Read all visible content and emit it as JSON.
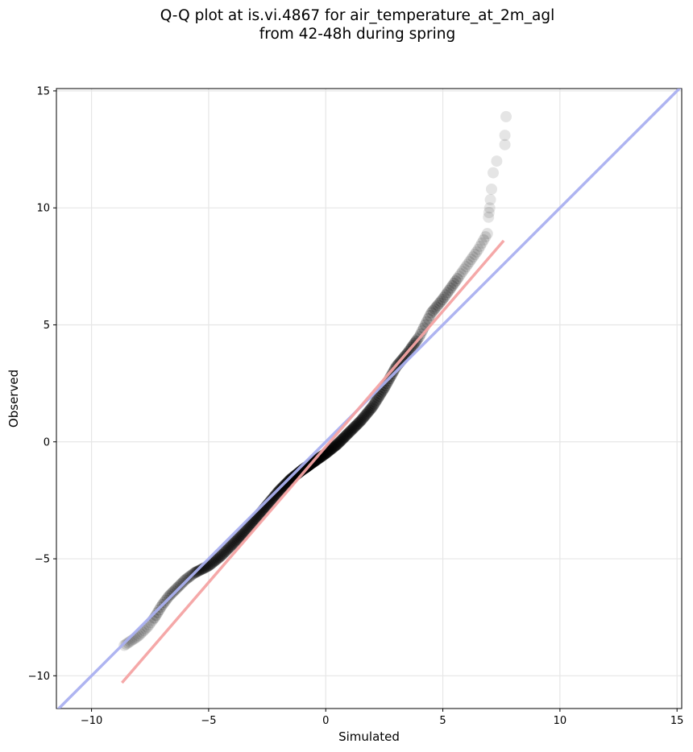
{
  "chart_data": {
    "type": "scatter",
    "title": "Q-Q plot at is.vi.4867 for air_temperature_at_2m_agl\nfrom 42-48h during spring",
    "xlabel": "Simulated",
    "ylabel": "Observed",
    "xlim": [
      -11.5,
      15.2
    ],
    "ylim": [
      -11.4,
      15.1
    ],
    "xticks": [
      -10,
      -5,
      0,
      5,
      10,
      15
    ],
    "yticks": [
      -10,
      -5,
      0,
      5,
      10,
      15
    ],
    "xtick_labels": [
      "−10",
      "−5",
      "0",
      "5",
      "10",
      "15"
    ],
    "ytick_labels": [
      "−10",
      "−5",
      "0",
      "5",
      "10",
      "15"
    ],
    "grid": true,
    "quantile_curve": [
      [
        -8.6,
        -8.7
      ],
      [
        -8.0,
        -8.3
      ],
      [
        -7.6,
        -7.9
      ],
      [
        -7.3,
        -7.5
      ],
      [
        -7.0,
        -7.0
      ],
      [
        -6.7,
        -6.6
      ],
      [
        -6.4,
        -6.3
      ],
      [
        -6.0,
        -5.9
      ],
      [
        -5.6,
        -5.6
      ],
      [
        -5.0,
        -5.3
      ],
      [
        -4.5,
        -4.9
      ],
      [
        -4.0,
        -4.4
      ],
      [
        -3.5,
        -3.9
      ],
      [
        -3.0,
        -3.3
      ],
      [
        -2.5,
        -2.7
      ],
      [
        -2.0,
        -2.1
      ],
      [
        -1.5,
        -1.6
      ],
      [
        -1.0,
        -1.2
      ],
      [
        -0.5,
        -0.85
      ],
      [
        0.0,
        -0.5
      ],
      [
        0.5,
        -0.1
      ],
      [
        1.0,
        0.4
      ],
      [
        1.5,
        0.9
      ],
      [
        2.0,
        1.5
      ],
      [
        2.5,
        2.3
      ],
      [
        3.0,
        3.2
      ],
      [
        3.5,
        3.8
      ],
      [
        4.0,
        4.5
      ],
      [
        4.5,
        5.5
      ],
      [
        5.0,
        6.1
      ],
      [
        5.5,
        6.8
      ],
      [
        6.0,
        7.5
      ],
      [
        6.5,
        8.2
      ],
      [
        6.9,
        8.9
      ]
    ],
    "upper_tail_points": [
      [
        6.95,
        9.6
      ],
      [
        6.97,
        9.8
      ],
      [
        7.0,
        10.0
      ],
      [
        7.03,
        10.35
      ],
      [
        7.08,
        10.8
      ],
      [
        7.15,
        11.5
      ],
      [
        7.3,
        12.0
      ],
      [
        7.65,
        12.7
      ],
      [
        7.65,
        13.1
      ],
      [
        7.7,
        13.9
      ]
    ],
    "series": [
      {
        "name": "",
        "type": "line",
        "color": "#aab0f0",
        "x": [
          -11.5,
          15.2
        ],
        "y": [
          -11.5,
          15.2
        ]
      },
      {
        "name": "",
        "type": "line",
        "color": "#f4a3a3",
        "x": [
          -8.7,
          7.6
        ],
        "y": [
          -10.3,
          8.6
        ]
      }
    ],
    "colors": {
      "points": "#000000",
      "identity_line": "#aab0f0",
      "fit_line": "#f4a3a3"
    }
  }
}
